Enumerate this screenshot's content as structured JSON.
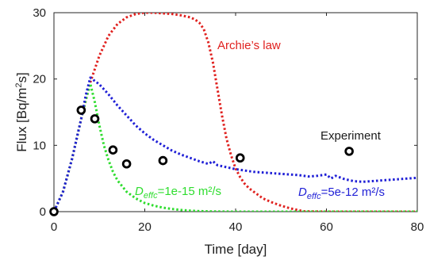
{
  "chart_data": {
    "type": "line",
    "xlabel": "Time [day]",
    "ylabel_parts": {
      "pre": "Flux [Bq/m",
      "sup": "2",
      "post": "s]"
    },
    "xlim": [
      0,
      80
    ],
    "ylim": [
      0,
      30
    ],
    "x_ticks": [
      0,
      20,
      40,
      60,
      80
    ],
    "y_ticks": [
      0,
      10,
      20,
      30
    ],
    "grid": false,
    "colors": {
      "archie": "#e0211f",
      "deff_low": "#2fdd2f",
      "deff_high": "#1f1fd6",
      "experiment": "#000000",
      "axis": "#262626"
    },
    "series": [
      {
        "name": "Archie's law",
        "style": "dotted",
        "color_key": "archie",
        "x": [
          0,
          2,
          4,
          6,
          8,
          10,
          12,
          14,
          16,
          18,
          20,
          22,
          24,
          26,
          28,
          30,
          31,
          32,
          33,
          34,
          35,
          36,
          37,
          38,
          39,
          40,
          41,
          42,
          43,
          44,
          45,
          46,
          48,
          50,
          52,
          54,
          55,
          60,
          70,
          80
        ],
        "y": [
          0,
          3.0,
          8.0,
          14.0,
          19.5,
          23.5,
          26.5,
          28.3,
          29.3,
          29.8,
          30.0,
          30.0,
          29.9,
          29.8,
          29.6,
          29.3,
          29.0,
          28.5,
          27.5,
          25.5,
          22.5,
          18.5,
          14.5,
          11.0,
          8.5,
          6.5,
          5.2,
          4.2,
          3.5,
          3.0,
          2.5,
          2.0,
          1.4,
          0.9,
          0.5,
          0.2,
          0.05,
          0,
          0,
          0
        ]
      },
      {
        "name": "Deff_c=1e-15",
        "style": "dotted",
        "color_key": "deff_low",
        "x": [
          0,
          2,
          4,
          6,
          7,
          8,
          9,
          10,
          11,
          12,
          13,
          14,
          16,
          18,
          20,
          22,
          24,
          26,
          28,
          30,
          32,
          35,
          40,
          50,
          60,
          70,
          80
        ],
        "y": [
          0,
          3.0,
          8.0,
          14.0,
          16.8,
          19.3,
          16.5,
          13.0,
          10.0,
          7.8,
          6.0,
          4.7,
          3.0,
          2.0,
          1.3,
          0.9,
          0.6,
          0.4,
          0.25,
          0.15,
          0.08,
          0.03,
          0,
          0,
          0,
          0,
          0
        ]
      },
      {
        "name": "Deff_c=5e-12",
        "style": "dotted",
        "color_key": "deff_high",
        "x": [
          0,
          2,
          4,
          6,
          7,
          8,
          10,
          12,
          14,
          16,
          18,
          20,
          22,
          24,
          26,
          28,
          30,
          32,
          34,
          35,
          36,
          38,
          40,
          42,
          44,
          46,
          48,
          50,
          52,
          54,
          56,
          58,
          60,
          61,
          62,
          64,
          66,
          68,
          70,
          72,
          74,
          76,
          78,
          80
        ],
        "y": [
          0,
          3.0,
          8.0,
          14.0,
          17.5,
          20.2,
          19.2,
          17.7,
          16.0,
          14.5,
          13.0,
          11.8,
          10.8,
          10.0,
          9.2,
          8.6,
          8.1,
          7.6,
          7.2,
          7.6,
          7.0,
          6.7,
          6.4,
          6.2,
          6.0,
          5.9,
          5.8,
          5.7,
          5.6,
          5.5,
          5.3,
          5.4,
          5.6,
          5.0,
          5.4,
          4.9,
          4.6,
          4.5,
          4.6,
          4.7,
          4.8,
          4.9,
          5.0,
          5.1
        ]
      },
      {
        "name": "Experiment",
        "type": "scatter",
        "color_key": "experiment",
        "x": [
          0,
          6,
          9,
          13,
          16,
          24,
          41,
          65
        ],
        "y": [
          0,
          15.3,
          14.0,
          9.3,
          7.2,
          7.7,
          8.1,
          9.1
        ]
      }
    ],
    "annotations": {
      "archie": "Archie’s law",
      "experiment": "Experiment",
      "deff_low": {
        "symbol": "D",
        "subscript": "effc",
        "text": "=1e-15 m²/s"
      },
      "deff_high": {
        "symbol": "D",
        "subscript": "effc",
        "text": "=5e-12 m²/s"
      }
    }
  }
}
